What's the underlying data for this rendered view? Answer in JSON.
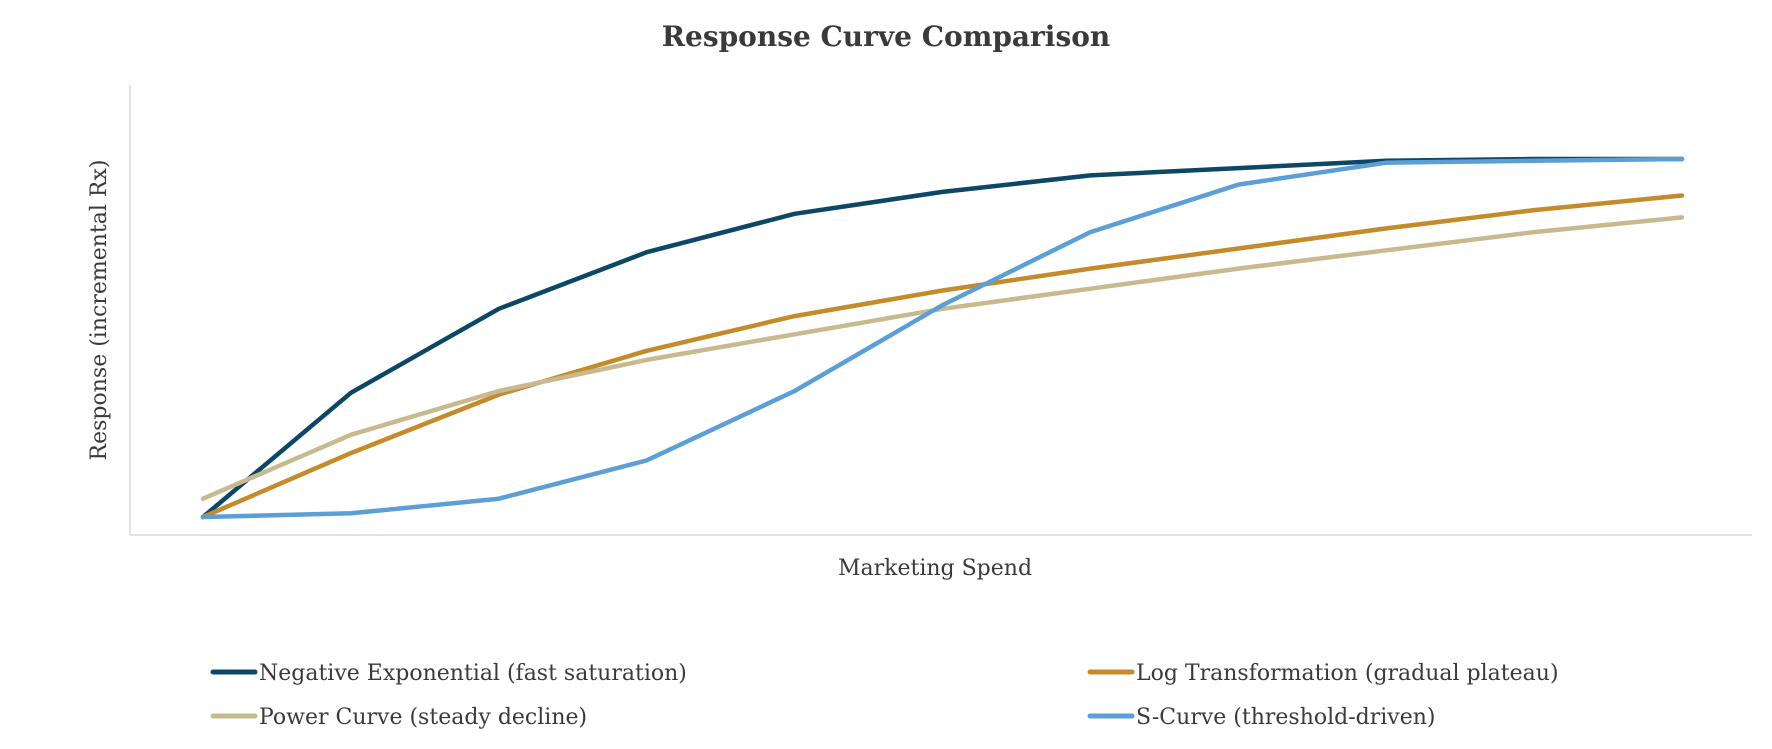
{
  "chart_data": {
    "type": "line",
    "title": "Response Curve Comparison",
    "xlabel": "Marketing Spend",
    "ylabel": "Response (incremental Rx)",
    "x": [
      0,
      1,
      2,
      3,
      4,
      5,
      6,
      7,
      8,
      9,
      10
    ],
    "ylim": [
      0,
      105
    ],
    "grid": false,
    "legend_position": "bottom",
    "series": [
      {
        "name": "Negative Exponential (fast saturation)",
        "color": "#0d4766",
        "values": [
          0,
          34,
          57,
          72.5,
          83,
          89,
          93.5,
          95.5,
          97.5,
          98,
          98
        ]
      },
      {
        "name": "Log Transformation (gradual plateau)",
        "color": "#c58b2b",
        "values": [
          0,
          17.5,
          33.5,
          45.5,
          55,
          62,
          68,
          73.5,
          79,
          84,
          88
        ]
      },
      {
        "name": "Power Curve (steady decline)",
        "color": "#c9b98f",
        "values": [
          5,
          22.5,
          34.5,
          43,
          50,
          57,
          62.5,
          68,
          73,
          78,
          82
        ]
      },
      {
        "name": "S-Curve (threshold-driven)",
        "color": "#5b9fd6",
        "values": [
          0,
          1,
          5,
          15.5,
          34.5,
          58,
          78,
          91,
          97,
          97.5,
          98
        ]
      }
    ]
  }
}
